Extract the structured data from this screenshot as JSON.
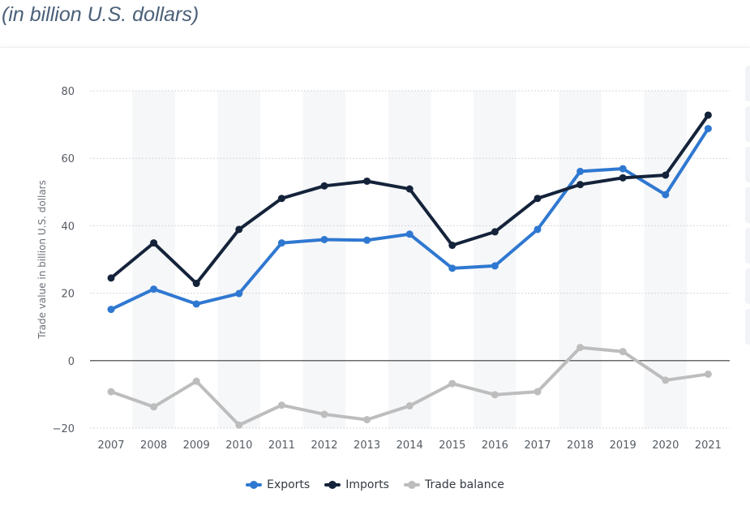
{
  "header": {
    "subtitle": "(in billion U.S. dollars)"
  },
  "chart_data": {
    "type": "line",
    "ylabel": "Trade value in billion U.S. dollars",
    "ylim": [
      -20,
      80
    ],
    "yticks": [
      80,
      60,
      40,
      20,
      0,
      -20
    ],
    "ytick_labels": [
      "80",
      "60",
      "40",
      "20",
      "0",
      "−20"
    ],
    "categories": [
      "2007",
      "2008",
      "2009",
      "2010",
      "2011",
      "2012",
      "2013",
      "2014",
      "2015",
      "2016",
      "2017",
      "2018",
      "2019",
      "2020",
      "2021"
    ],
    "grid": true,
    "legend_position": "bottom",
    "series": [
      {
        "name": "Exports",
        "color": "#2f78d1",
        "values": [
          15.2,
          21.2,
          16.8,
          19.9,
          34.9,
          35.9,
          35.7,
          37.5,
          27.4,
          28.1,
          38.9,
          56.1,
          56.9,
          49.2,
          68.8
        ]
      },
      {
        "name": "Imports",
        "color": "#14233a",
        "values": [
          24.5,
          34.9,
          22.9,
          38.9,
          48.1,
          51.8,
          53.2,
          50.9,
          34.2,
          38.2,
          48.1,
          52.2,
          54.2,
          55.0,
          72.8
        ]
      },
      {
        "name": "Trade balance",
        "color": "#bdbdbd",
        "values": [
          -9.2,
          -13.7,
          -6.1,
          -19.1,
          -13.2,
          -15.9,
          -17.5,
          -13.4,
          -6.8,
          -10.1,
          -9.2,
          3.9,
          2.7,
          -5.8,
          -4.0
        ]
      }
    ]
  }
}
